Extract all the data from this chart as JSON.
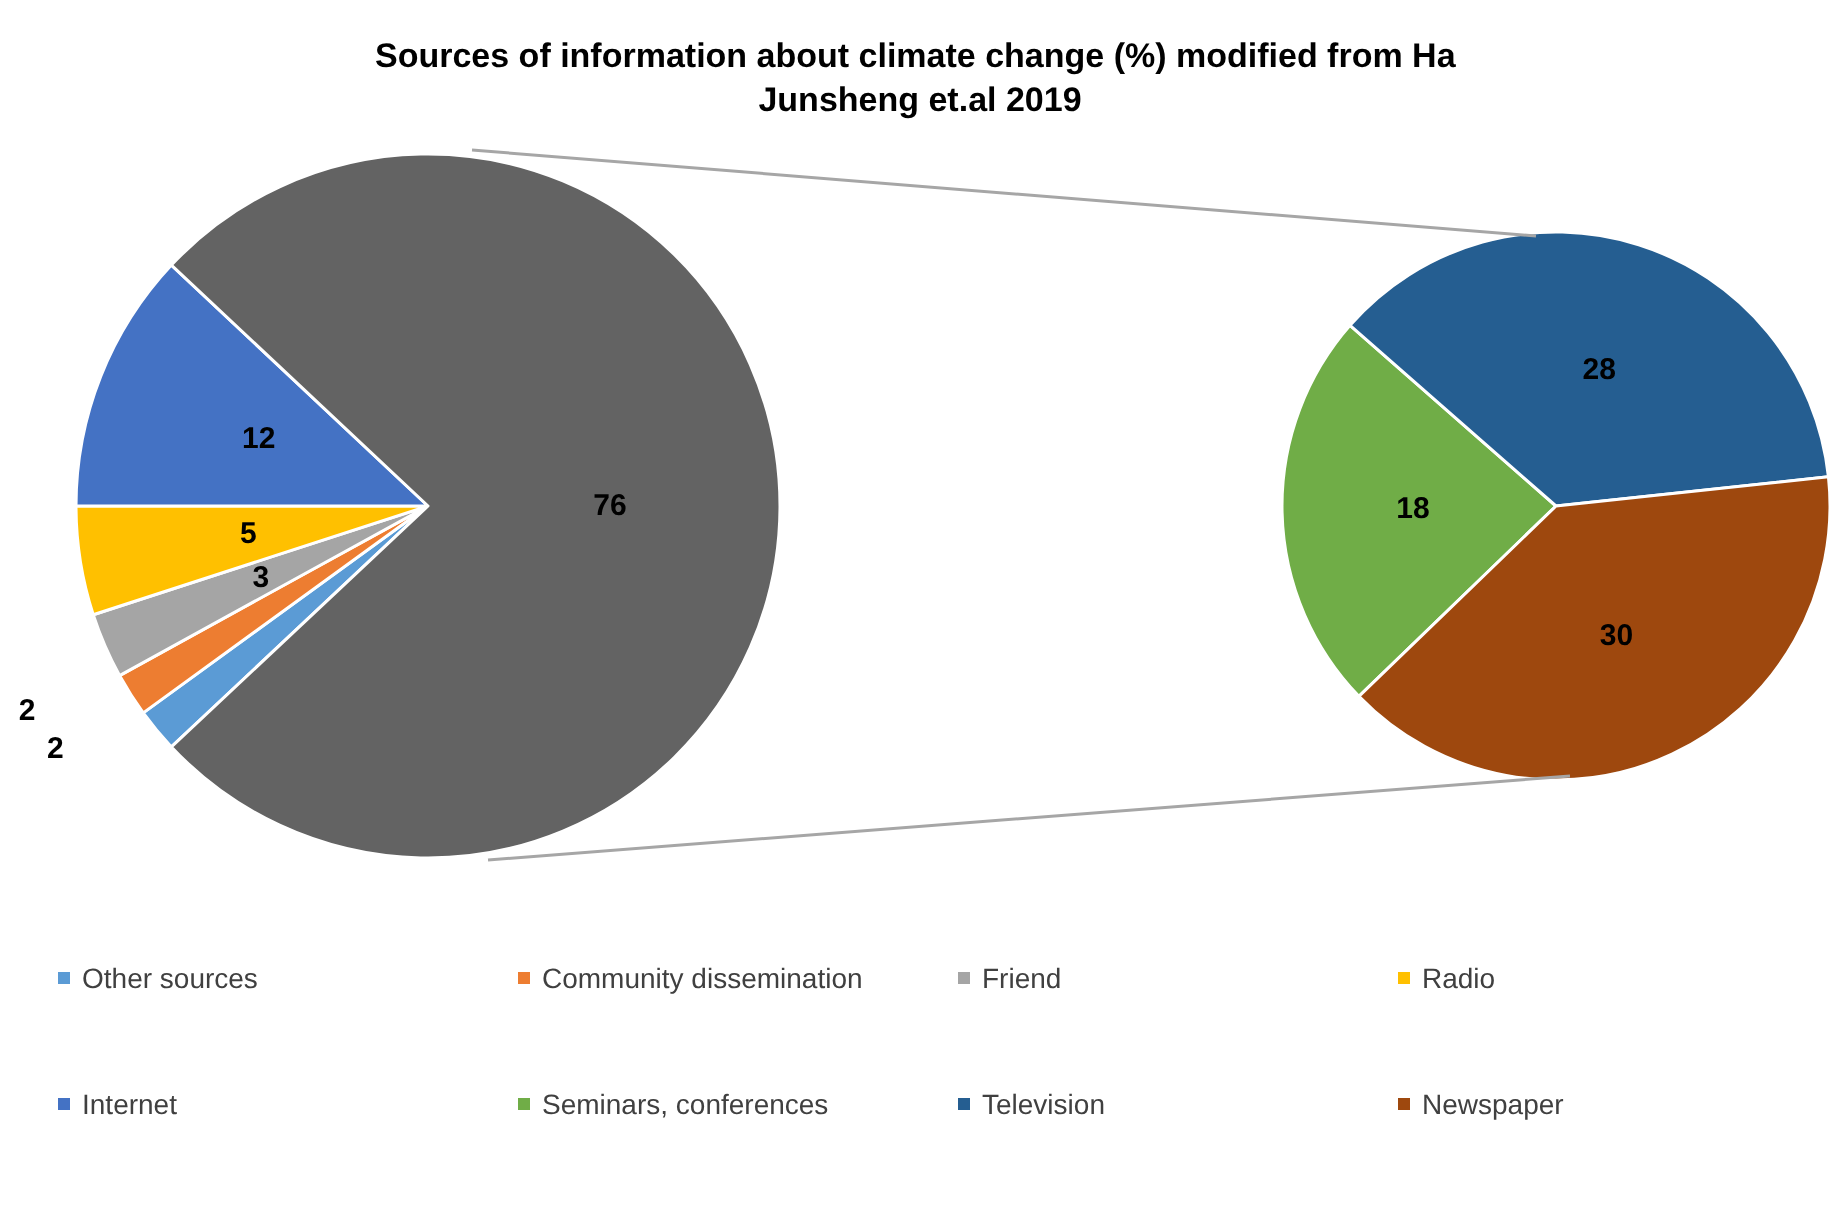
{
  "chart_data": [
    {
      "type": "pie",
      "title": "Sources of information about climate change (%) modified from Ha Junsheng et.al 2019",
      "categories": [
        "Other sources",
        "Community dissemination",
        "Friend",
        "Radio",
        "Internet",
        null
      ],
      "values": [
        2,
        2,
        3,
        5,
        12,
        76
      ],
      "colors": [
        "#5b9bd5",
        "#ed7d31",
        "#a5a5a5",
        "#ffc000",
        "#4472c4",
        "#636363"
      ],
      "data_labels": true,
      "legend": "bottom"
    },
    {
      "type": "pie",
      "categories": [
        "Seminars, conferences",
        "Television",
        "Newspaper"
      ],
      "values": [
        18,
        28,
        30
      ],
      "colors": [
        "#70ad47",
        "#255e91",
        "#9e480e"
      ],
      "data_labels": true,
      "legend": "bottom"
    }
  ]
}
